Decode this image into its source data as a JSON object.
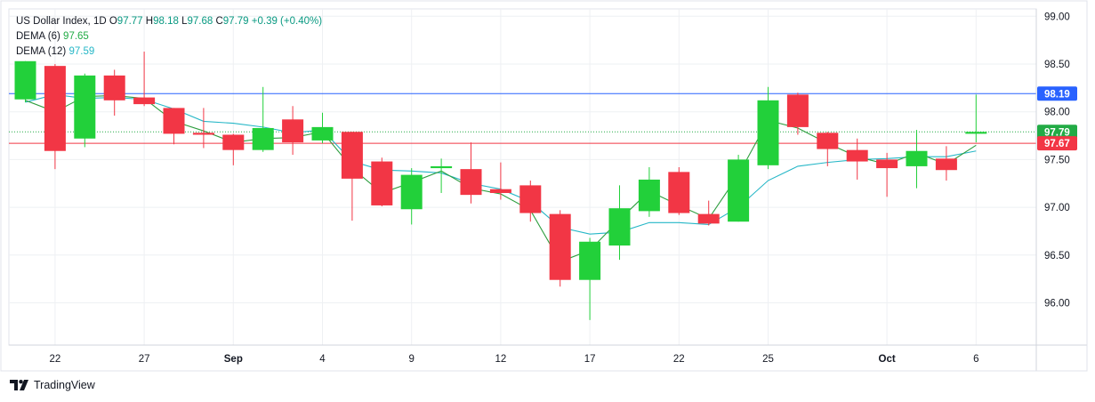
{
  "chart_data": {
    "type": "candlestick",
    "symbol": "US Dollar Index",
    "interval": "1D",
    "ohlc_header": {
      "o_label": "O",
      "o": "97.77",
      "h_label": "H",
      "h": "98.18",
      "l_label": "L",
      "l": "97.68",
      "c_label": "C",
      "c": "97.79",
      "change": "+0.39 (+0.40%)"
    },
    "indicators": [
      {
        "name": "DEMA (6)",
        "value": "97.65",
        "color": "#2e9e3f"
      },
      {
        "name": "DEMA (12)",
        "value": "97.59",
        "color": "#26b7c7"
      }
    ],
    "ylim": [
      95.55,
      99.0
    ],
    "y_ticks": [
      "99.00",
      "98.50",
      "98.00",
      "97.50",
      "97.00",
      "96.50",
      "96.00"
    ],
    "x_tick_labels": [
      {
        "label": "22",
        "index": 1
      },
      {
        "label": "27",
        "index": 4
      },
      {
        "label": "Sep",
        "index": 7
      },
      {
        "label": "4",
        "index": 10
      },
      {
        "label": "9",
        "index": 13
      },
      {
        "label": "12",
        "index": 16
      },
      {
        "label": "17",
        "index": 19
      },
      {
        "label": "22",
        "index": 22
      },
      {
        "label": "25",
        "index": 25
      },
      {
        "label": "Oct",
        "index": 29
      },
      {
        "label": "6",
        "index": 32
      }
    ],
    "candles": [
      {
        "o": 98.13,
        "h": 98.53,
        "l": 98.1,
        "c": 98.53
      },
      {
        "o": 98.48,
        "h": 98.5,
        "l": 97.4,
        "c": 97.59
      },
      {
        "o": 97.72,
        "h": 98.4,
        "l": 97.63,
        "c": 98.38
      },
      {
        "o": 98.38,
        "h": 98.44,
        "l": 97.96,
        "c": 98.12
      },
      {
        "o": 98.15,
        "h": 98.63,
        "l": 98.06,
        "c": 98.08
      },
      {
        "o": 98.04,
        "h": 98.04,
        "l": 97.66,
        "c": 97.77
      },
      {
        "o": 97.78,
        "h": 98.04,
        "l": 97.62,
        "c": 97.76
      },
      {
        "o": 97.76,
        "h": 97.77,
        "l": 97.44,
        "c": 97.6
      },
      {
        "o": 97.6,
        "h": 98.26,
        "l": 97.58,
        "c": 97.83
      },
      {
        "o": 97.92,
        "h": 98.06,
        "l": 97.55,
        "c": 97.68
      },
      {
        "o": 97.7,
        "h": 97.99,
        "l": 97.67,
        "c": 97.84
      },
      {
        "o": 97.79,
        "h": 97.79,
        "l": 96.86,
        "c": 97.3
      },
      {
        "o": 97.48,
        "h": 97.52,
        "l": 97.01,
        "c": 97.02
      },
      {
        "o": 96.98,
        "h": 97.41,
        "l": 96.82,
        "c": 97.34
      },
      {
        "o": 97.41,
        "h": 97.51,
        "l": 97.15,
        "c": 97.43
      },
      {
        "o": 97.4,
        "h": 97.68,
        "l": 97.04,
        "c": 97.13
      },
      {
        "o": 97.19,
        "h": 97.47,
        "l": 97.08,
        "c": 97.15
      },
      {
        "o": 97.23,
        "h": 97.28,
        "l": 96.85,
        "c": 96.94
      },
      {
        "o": 96.93,
        "h": 96.97,
        "l": 96.17,
        "c": 96.24
      },
      {
        "o": 96.24,
        "h": 96.68,
        "l": 95.82,
        "c": 96.64
      },
      {
        "o": 96.6,
        "h": 97.23,
        "l": 96.45,
        "c": 96.99
      },
      {
        "o": 96.96,
        "h": 97.42,
        "l": 96.9,
        "c": 97.29
      },
      {
        "o": 97.37,
        "h": 97.42,
        "l": 96.92,
        "c": 96.94
      },
      {
        "o": 96.93,
        "h": 97.07,
        "l": 96.81,
        "c": 96.83
      },
      {
        "o": 96.85,
        "h": 97.55,
        "l": 96.85,
        "c": 97.5
      },
      {
        "o": 97.44,
        "h": 98.26,
        "l": 97.4,
        "c": 98.12
      },
      {
        "o": 98.18,
        "h": 98.2,
        "l": 97.76,
        "c": 97.84
      },
      {
        "o": 97.78,
        "h": 97.79,
        "l": 97.43,
        "c": 97.61
      },
      {
        "o": 97.6,
        "h": 97.72,
        "l": 97.29,
        "c": 97.48
      },
      {
        "o": 97.5,
        "h": 97.57,
        "l": 97.11,
        "c": 97.41
      },
      {
        "o": 97.43,
        "h": 97.81,
        "l": 97.2,
        "c": 97.59
      },
      {
        "o": 97.51,
        "h": 97.64,
        "l": 97.28,
        "c": 97.39
      },
      {
        "o": 97.77,
        "h": 98.18,
        "l": 97.68,
        "c": 97.79
      }
    ],
    "dema6": [
      98.12,
      98.0,
      98.16,
      98.17,
      98.14,
      97.9,
      97.8,
      97.68,
      97.72,
      97.73,
      97.79,
      97.41,
      97.15,
      97.26,
      97.38,
      97.2,
      97.14,
      96.97,
      96.43,
      96.55,
      96.87,
      97.17,
      97.02,
      96.88,
      97.34,
      97.91,
      97.83,
      97.67,
      97.53,
      97.45,
      97.57,
      97.45,
      97.65
    ],
    "dema12": [
      98.1,
      98.18,
      98.14,
      98.15,
      98.13,
      98.03,
      97.9,
      97.88,
      97.84,
      97.78,
      97.81,
      97.48,
      97.39,
      97.38,
      97.36,
      97.25,
      97.19,
      97.06,
      96.79,
      96.72,
      96.74,
      96.84,
      96.84,
      96.82,
      97.0,
      97.28,
      97.43,
      97.47,
      97.5,
      97.51,
      97.53,
      97.53,
      97.59
    ],
    "price_lines": [
      {
        "label": "98.19",
        "value": 98.19,
        "color": "#2962ff",
        "style": "solid"
      },
      {
        "label": "97.79",
        "value": 97.79,
        "color": "#22ab45",
        "style": "dotted"
      },
      {
        "label": "97.67",
        "value": 97.67,
        "color": "#f23645",
        "style": "solid"
      }
    ],
    "colors": {
      "up": "#22d03a",
      "down": "#f23645",
      "grid": "#eef0f3",
      "text": "#131722"
    },
    "grid": true
  },
  "brand": {
    "name": "TradingView"
  }
}
